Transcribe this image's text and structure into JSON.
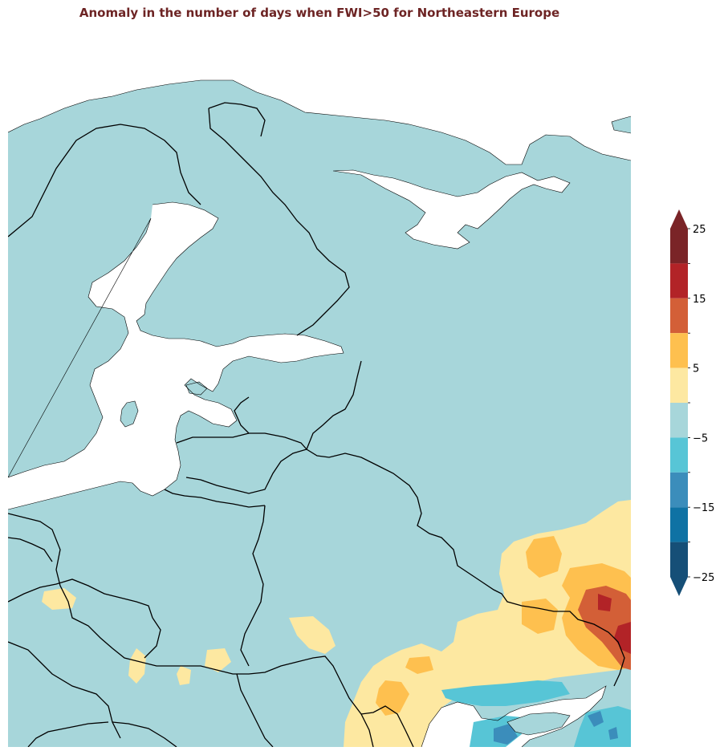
{
  "title": "Anomaly in the number of days when FWI>50 for Northeastern Europe",
  "colors": {
    "title": "#6d2424",
    "water": "#ffffff",
    "land_default": "#a7d6da",
    "border": "#000000"
  },
  "map": {
    "region": "Northeastern Europe",
    "variable": "Anomaly in the number of days when FWI>50",
    "projection": "lat-lon",
    "features": [
      "coastlines",
      "country-borders"
    ]
  },
  "colorbar": {
    "orientation": "vertical",
    "extend": "both",
    "ticks": [
      25,
      15,
      5,
      -5,
      -15,
      -25
    ],
    "tick_labels": [
      "25",
      "15",
      "5",
      "−5",
      "−15",
      "−25"
    ],
    "bins": [
      {
        "range": [
          20,
          25
        ],
        "color": "#7a2427"
      },
      {
        "range": [
          15,
          20
        ],
        "color": "#b22327"
      },
      {
        "range": [
          10,
          15
        ],
        "color": "#d35f37"
      },
      {
        "range": [
          5,
          10
        ],
        "color": "#fec04f"
      },
      {
        "range": [
          0,
          5
        ],
        "color": "#fde8a1"
      },
      {
        "range": [
          -5,
          0
        ],
        "color": "#a7d6da"
      },
      {
        "range": [
          -10,
          -5
        ],
        "color": "#57c5d6"
      },
      {
        "range": [
          -15,
          -10
        ],
        "color": "#3b8dbb"
      },
      {
        "range": [
          -20,
          -15
        ],
        "color": "#0f72a4"
      },
      {
        "range": [
          -25,
          -20
        ],
        "color": "#164f77"
      }
    ]
  }
}
